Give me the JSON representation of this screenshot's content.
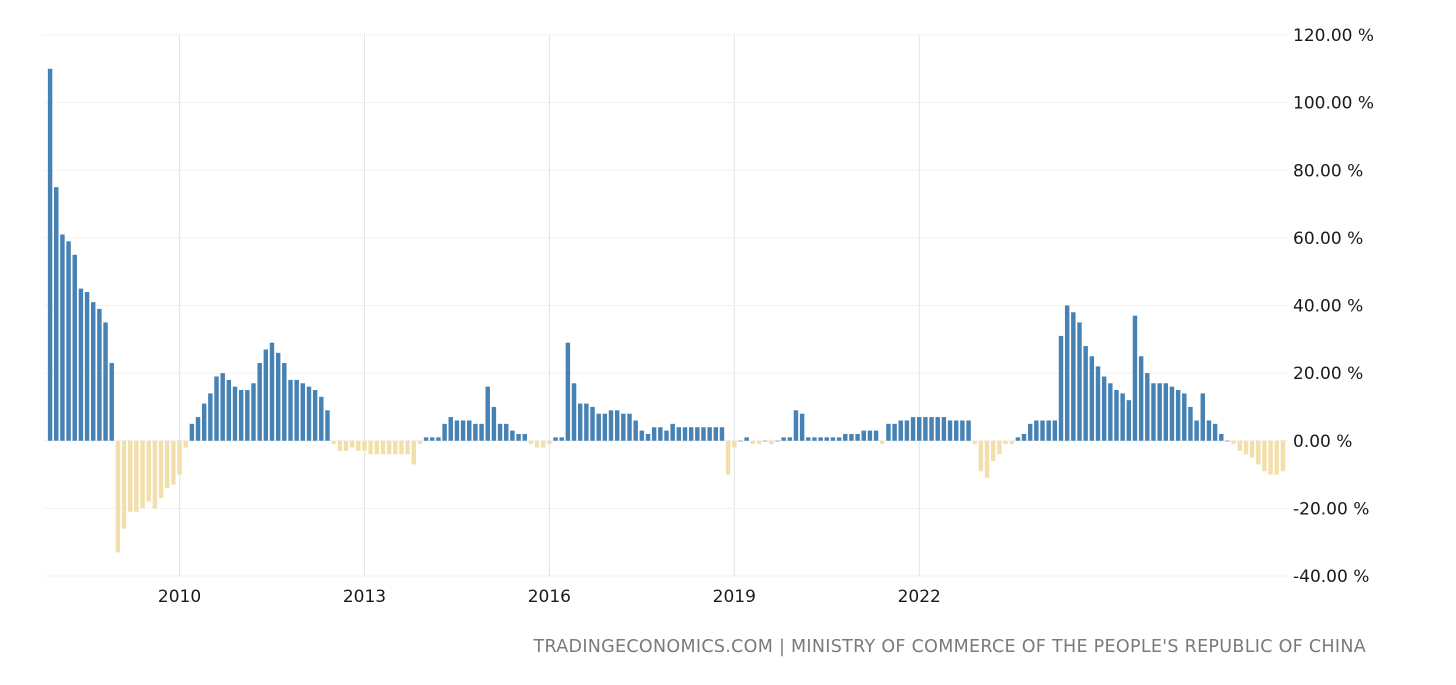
{
  "chart_data": {
    "type": "bar",
    "title": "",
    "xlabel": "",
    "ylabel": "",
    "ylim": [
      -40,
      120
    ],
    "y_ticks": [
      120,
      100,
      80,
      60,
      40,
      20,
      0,
      -20,
      -40
    ],
    "y_tick_suffix": ".00 %",
    "x_ticks": [
      "2010",
      "2013",
      "2016",
      "2019",
      "2022"
    ],
    "x_tick_indices": [
      21,
      51,
      81,
      111,
      141
    ],
    "colors": {
      "positive": "#4682b4",
      "negative": "#f2dfab",
      "grid": "#e3e3e3"
    },
    "values": [
      110,
      75,
      61,
      59,
      55,
      45,
      44,
      41,
      39,
      35,
      23,
      -33,
      -26,
      -21,
      -21,
      -20,
      -18,
      -20,
      -17,
      -14,
      -13,
      -10,
      -2,
      5,
      7,
      11,
      14,
      19,
      20,
      18,
      16,
      15,
      15,
      17,
      23,
      27,
      29,
      26,
      23,
      18,
      18,
      17,
      16,
      15,
      13,
      9,
      -1,
      -3,
      -3,
      -2,
      -3,
      -3,
      -4,
      -4,
      -4,
      -4,
      -4,
      -4,
      -4,
      -7,
      -1,
      1,
      1,
      1,
      5,
      7,
      6,
      6,
      6,
      5,
      5,
      16,
      10,
      5,
      5,
      3,
      2,
      2,
      -1,
      -2,
      -2,
      -1,
      1,
      1,
      29,
      17,
      11,
      11,
      10,
      8,
      8,
      9,
      9,
      8,
      8,
      6,
      3,
      2,
      4,
      4,
      3,
      5,
      4,
      4,
      4,
      4,
      4,
      4,
      4,
      4,
      -10,
      -2,
      0,
      1,
      -1,
      -1,
      0,
      -1,
      0,
      1,
      1,
      9,
      8,
      1,
      1,
      1,
      1,
      1,
      1,
      2,
      2,
      2,
      3,
      3,
      3,
      -1,
      5,
      5,
      6,
      6,
      7,
      7,
      7,
      7,
      7,
      7,
      6,
      6,
      6,
      6,
      -1,
      -9,
      -11,
      -6,
      -4,
      -1,
      -1,
      1,
      2,
      5,
      6,
      6,
      6,
      6,
      31,
      40,
      38,
      35,
      28,
      25,
      22,
      19,
      17,
      15,
      14,
      12,
      37,
      25,
      20,
      17,
      17,
      17,
      16,
      15,
      14,
      10,
      6,
      14,
      6,
      5,
      2,
      0,
      -1,
      -3,
      -4,
      -5,
      -7,
      -9,
      -10,
      -10,
      -9
    ]
  },
  "source_text": "TRADINGECONOMICS.COM | MINISTRY OF COMMERCE OF THE PEOPLE'S REPUBLIC OF CHINA"
}
